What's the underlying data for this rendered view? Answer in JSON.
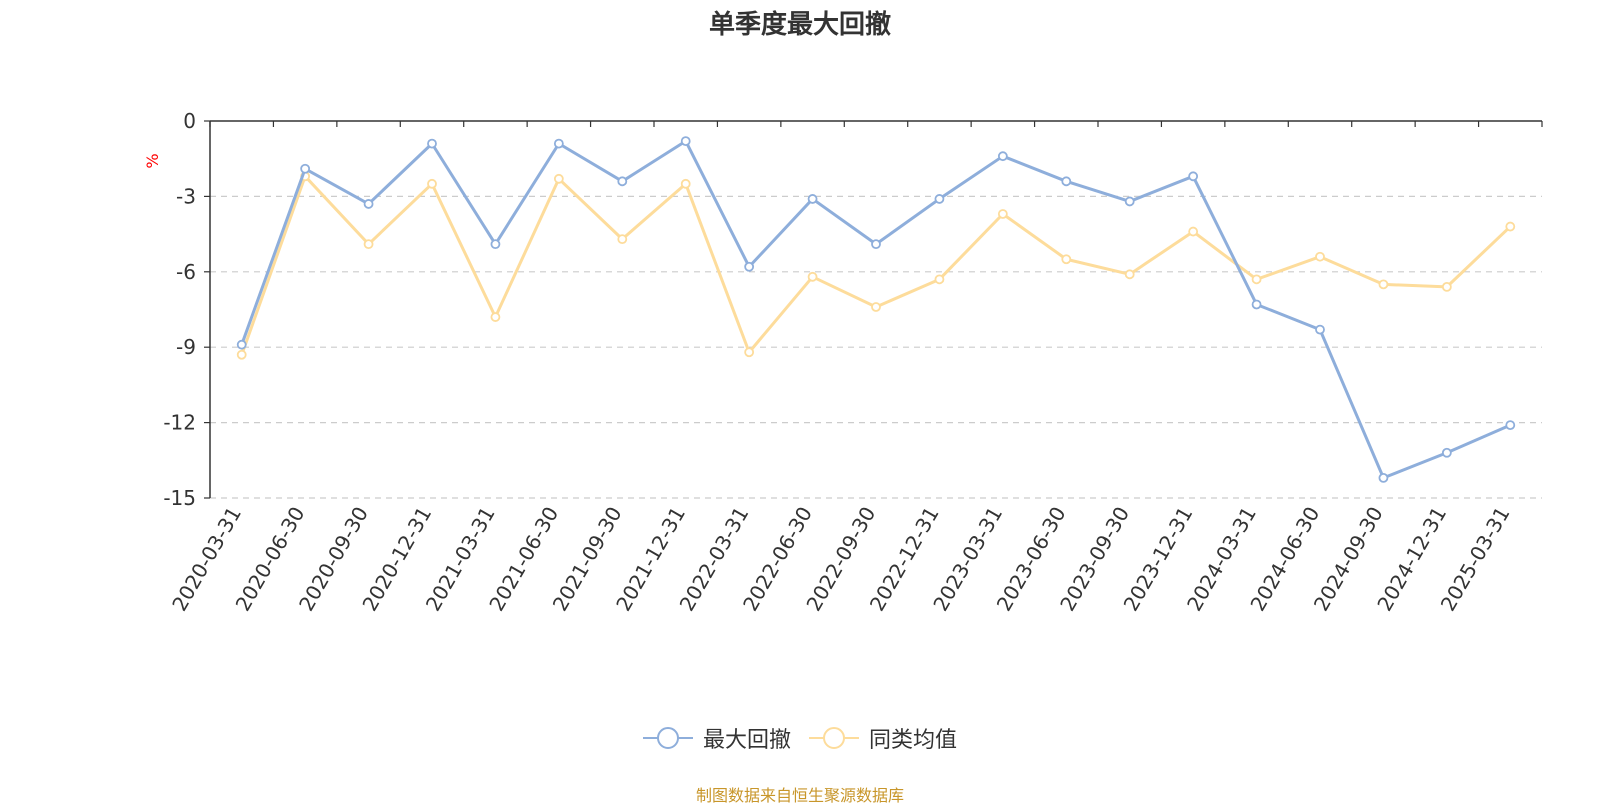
{
  "title": "单季度最大回撤",
  "source_note": "制图数据来自恒生聚源数据库",
  "colors": {
    "series_max_drawdown": "#8eaedb",
    "series_peer_avg": "#fddc9b",
    "ylabel": "#ff0000",
    "source": "#c8962a",
    "grid": "#cccccc",
    "axis": "#333333"
  },
  "chart_data": {
    "type": "line",
    "title": "单季度最大回撤",
    "xlabel": "",
    "ylabel": "%",
    "ylim": [
      -15,
      0
    ],
    "yticks": [
      0,
      -3,
      -6,
      -9,
      -12,
      -15
    ],
    "grid": "horizontal dashed",
    "legend_position": "bottom",
    "categories": [
      "2020-03-31",
      "2020-06-30",
      "2020-09-30",
      "2020-12-31",
      "2021-03-31",
      "2021-06-30",
      "2021-09-30",
      "2021-12-31",
      "2022-03-31",
      "2022-06-30",
      "2022-09-30",
      "2022-12-31",
      "2023-03-31",
      "2023-06-30",
      "2023-09-30",
      "2023-12-31",
      "2024-03-31",
      "2024-06-30",
      "2024-09-30",
      "2024-12-31",
      "2025-03-31"
    ],
    "series": [
      {
        "name": "最大回撤",
        "values": [
          -8.9,
          -1.9,
          -3.3,
          -0.9,
          -4.9,
          -0.9,
          -2.4,
          -0.8,
          -5.8,
          -3.1,
          -4.9,
          -3.1,
          -1.4,
          -2.4,
          -3.2,
          -2.2,
          -7.3,
          -8.3,
          -14.2,
          -13.2,
          -12.1
        ]
      },
      {
        "name": "同类均值",
        "values": [
          -9.3,
          -2.2,
          -4.9,
          -2.5,
          -7.8,
          -2.3,
          -4.7,
          -2.5,
          -9.2,
          -6.2,
          -7.4,
          -6.3,
          -3.7,
          -5.5,
          -6.1,
          -4.4,
          -6.3,
          -5.4,
          -6.5,
          -6.6,
          -4.2
        ]
      }
    ]
  }
}
